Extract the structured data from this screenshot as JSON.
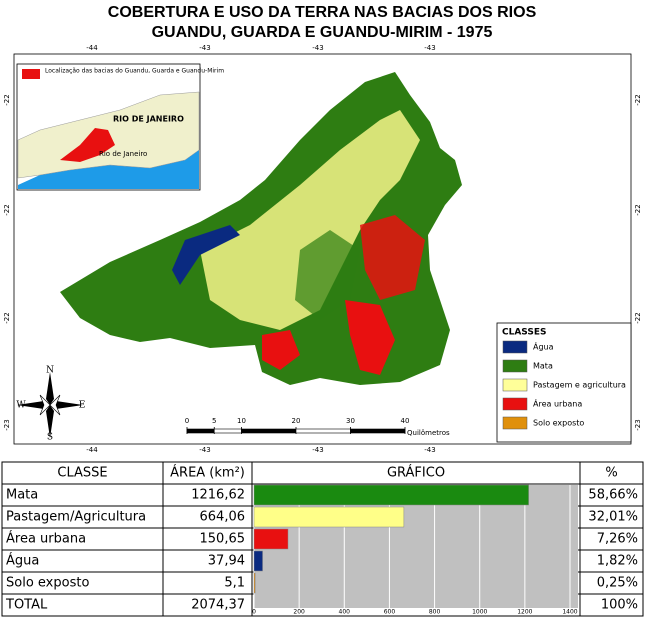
{
  "title": [
    "COBERTURA E USO DA TERRA NAS BACIAS DOS RIOS",
    "GUANDU, GUARDA E GUANDU-MIRIM - 1975"
  ],
  "map": {
    "top_coords": [
      "-44",
      "-43",
      "-43",
      "-43"
    ],
    "bottom_coords": [
      "-44",
      "-43",
      "-43",
      "-43"
    ],
    "left_coords": [
      "-22",
      "-22",
      "-22",
      "-23"
    ],
    "right_coords": [
      "-22",
      "-22",
      "-22",
      "-23"
    ],
    "inset": {
      "legend": "Localização das bacias do Guandu, Guarda e Guandu-Mirim",
      "state": "RIO DE JANEIRO",
      "city": "Rio de Janeiro"
    },
    "legend": {
      "title": "CLASSES",
      "items": [
        {
          "label": "Água",
          "color": "#0a2a80"
        },
        {
          "label": "Mata",
          "color": "#2e7d12"
        },
        {
          "label": "Pastagem e agricultura",
          "color": "#ffff99"
        },
        {
          "label": "Área urbana",
          "color": "#e81010"
        },
        {
          "label": "Solo exposto",
          "color": "#e0900c"
        }
      ]
    },
    "scale": {
      "ticks": [
        0,
        5,
        10,
        20,
        30,
        40
      ],
      "unit": "Quilômetros"
    },
    "compass": {
      "n": "N",
      "s": "S",
      "w": "W",
      "e": "E"
    }
  },
  "table": {
    "headers": [
      "CLASSE",
      "ÁREA (km²)",
      "GRÁFICO",
      "%"
    ],
    "rows": [
      {
        "classe": "Mata",
        "area": "1216,62",
        "percent": "58,66%"
      },
      {
        "classe": "Pastagem/Agricultura",
        "area": "664,06",
        "percent": "32,01%"
      },
      {
        "classe": "Área urbana",
        "area": "150,65",
        "percent": "7,26%"
      },
      {
        "classe": "Água",
        "area": "37,94",
        "percent": "1,82%"
      },
      {
        "classe": "Solo exposto",
        "area": "5,1",
        "percent": "0,25%"
      },
      {
        "classe": "TOTAL",
        "area": "2074,37",
        "percent": "100%"
      }
    ]
  },
  "chart_data": {
    "type": "bar",
    "values": [
      1216.62,
      664.06,
      150.65,
      37.94,
      5.1
    ],
    "colors": [
      "#1a8a10",
      "#ffff88",
      "#e81010",
      "#0a2a80",
      "#e08a10"
    ],
    "xlim": [
      0,
      1400
    ],
    "xticks": [
      0,
      200,
      400,
      600,
      800,
      1000,
      1200,
      1400
    ]
  }
}
